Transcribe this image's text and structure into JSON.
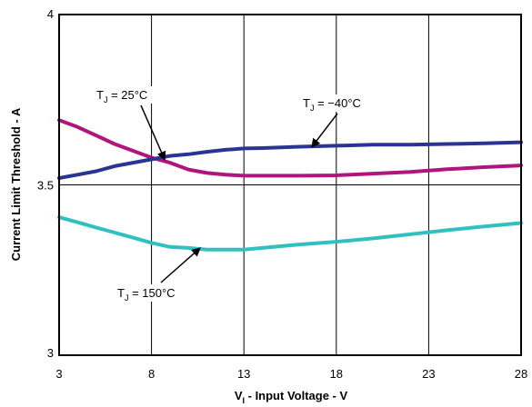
{
  "chart_data": {
    "type": "line",
    "xlabel": {
      "main": "V",
      "sub": "I",
      "rest": " - Input Voltage - V"
    },
    "ylabel": "Current Limit Threshold - A",
    "xlim": [
      3,
      28
    ],
    "ylim": [
      3,
      4
    ],
    "xticks": [
      "3",
      "8",
      "13",
      "18",
      "23",
      "28"
    ],
    "yticks": [
      "4",
      "3.5",
      "3"
    ],
    "grid": true,
    "series": [
      {
        "name": "TJ = 25°C",
        "color": "#b0157e",
        "x": [
          3,
          4,
          5,
          6,
          7,
          8,
          9,
          10,
          11,
          12,
          13,
          14,
          16,
          18,
          20,
          22,
          24,
          26,
          28
        ],
        "y": [
          3.69,
          3.67,
          3.645,
          3.62,
          3.6,
          3.58,
          3.565,
          3.545,
          3.535,
          3.53,
          3.527,
          3.527,
          3.527,
          3.528,
          3.533,
          3.538,
          3.546,
          3.552,
          3.557
        ]
      },
      {
        "name": "TJ = −40°C",
        "color": "#2a3493",
        "x": [
          3,
          4,
          5,
          6,
          7,
          8,
          9,
          10,
          11,
          12,
          13,
          14,
          16,
          18,
          20,
          22,
          24,
          26,
          28
        ],
        "y": [
          3.52,
          3.53,
          3.54,
          3.555,
          3.565,
          3.575,
          3.585,
          3.59,
          3.597,
          3.603,
          3.607,
          3.608,
          3.612,
          3.615,
          3.618,
          3.618,
          3.62,
          3.622,
          3.625
        ]
      },
      {
        "name": "TJ = 150°C",
        "color": "#31c0c0",
        "x": [
          3,
          4,
          5,
          6,
          7,
          8,
          9,
          10,
          11,
          12,
          13,
          14,
          16,
          18,
          20,
          22,
          24,
          26,
          28
        ],
        "y": [
          3.405,
          3.39,
          3.375,
          3.36,
          3.345,
          3.33,
          3.318,
          3.315,
          3.31,
          3.31,
          3.31,
          3.315,
          3.325,
          3.333,
          3.343,
          3.355,
          3.367,
          3.378,
          3.388
        ]
      }
    ],
    "annotations": [
      {
        "prefix": "T",
        "sub": "J",
        "text": " = 25°C",
        "target": [
          8.7,
          3.576
        ]
      },
      {
        "prefix": "T",
        "sub": "J",
        "text": " = −40°C",
        "target": [
          16.7,
          3.613
        ]
      },
      {
        "prefix": "T",
        "sub": "J",
        "text": " = 150°C",
        "target": [
          10.6,
          3.313
        ]
      }
    ]
  }
}
